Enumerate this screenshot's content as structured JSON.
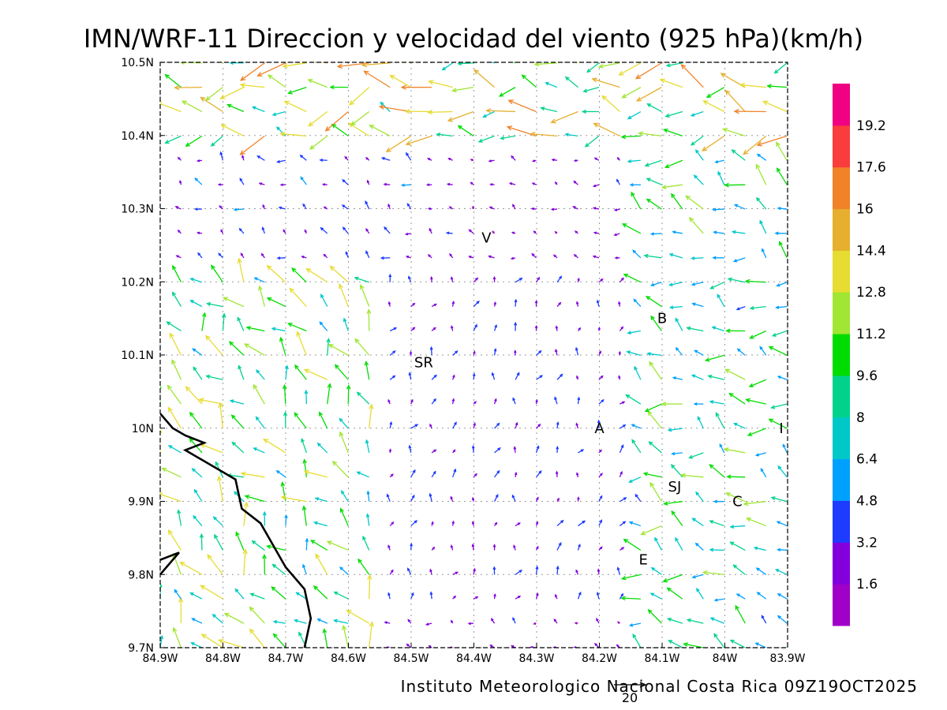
{
  "title": "IMN/WRF-11 Direccion y velocidad del viento (925 hPa)(km/h)",
  "credit": "Instituto Meteorologico Nacional Costa Rica 09Z19OCT2025",
  "reference_vector": {
    "label": "20",
    "speed": 20
  },
  "map": {
    "lon_range": [
      -84.9,
      -83.9
    ],
    "lat_range": [
      9.7,
      10.5
    ],
    "grid": true,
    "x_ticks": [
      {
        "lon": -84.9,
        "label": "84.9W"
      },
      {
        "lon": -84.8,
        "label": "84.8W"
      },
      {
        "lon": -84.7,
        "label": "84.7W"
      },
      {
        "lon": -84.6,
        "label": "84.6W"
      },
      {
        "lon": -84.5,
        "label": "84.5W"
      },
      {
        "lon": -84.4,
        "label": "84.4W"
      },
      {
        "lon": -84.3,
        "label": "84.3W"
      },
      {
        "lon": -84.2,
        "label": "84.2W"
      },
      {
        "lon": -84.1,
        "label": "84.1W"
      },
      {
        "lon": -84.0,
        "label": "84W"
      },
      {
        "lon": -83.9,
        "label": "83.9W"
      }
    ],
    "y_ticks": [
      {
        "lat": 10.5,
        "label": "10.5N"
      },
      {
        "lat": 10.4,
        "label": "10.4N"
      },
      {
        "lat": 10.3,
        "label": "10.3N"
      },
      {
        "lat": 10.2,
        "label": "10.2N"
      },
      {
        "lat": 10.1,
        "label": "10.1N"
      },
      {
        "lat": 10.0,
        "label": "10N"
      },
      {
        "lat": 9.9,
        "label": "9.9N"
      },
      {
        "lat": 9.8,
        "label": "9.8N"
      },
      {
        "lat": 9.7,
        "label": "9.7N"
      }
    ],
    "places": [
      {
        "label": "V",
        "lon": -84.38,
        "lat": 10.26
      },
      {
        "label": "B",
        "lon": -84.1,
        "lat": 10.15
      },
      {
        "label": "SR",
        "lon": -84.48,
        "lat": 10.09
      },
      {
        "label": "A",
        "lon": -84.2,
        "lat": 10.0
      },
      {
        "label": "I",
        "lon": -83.91,
        "lat": 10.0
      },
      {
        "label": "SJ",
        "lon": -84.08,
        "lat": 9.92
      },
      {
        "label": "C",
        "lon": -83.98,
        "lat": 9.9
      },
      {
        "label": "E",
        "lon": -84.13,
        "lat": 9.82
      }
    ],
    "coastline": [
      [
        -84.9,
        10.02
      ],
      [
        -84.88,
        10.0
      ],
      [
        -84.86,
        9.99
      ],
      [
        -84.83,
        9.98
      ],
      [
        -84.86,
        9.97
      ],
      [
        -84.82,
        9.95
      ],
      [
        -84.78,
        9.93
      ],
      [
        -84.77,
        9.89
      ],
      [
        -84.74,
        9.87
      ],
      [
        -84.72,
        9.84
      ],
      [
        -84.7,
        9.81
      ],
      [
        -84.67,
        9.78
      ],
      [
        -84.66,
        9.74
      ],
      [
        -84.67,
        9.7
      ]
    ],
    "coastline_sw": [
      [
        -84.9,
        9.8
      ],
      [
        -84.87,
        9.83
      ],
      [
        -84.9,
        9.82
      ]
    ]
  },
  "colorbar": {
    "colors": [
      "#a000c8",
      "#8200dc",
      "#1e3cff",
      "#00a0ff",
      "#00c8c8",
      "#00d28c",
      "#00dc00",
      "#a0e632",
      "#e6dc32",
      "#e6af2d",
      "#f08228",
      "#fa3c3c",
      "#f00082"
    ],
    "labels": [
      "1.6",
      "3.2",
      "4.8",
      "6.4",
      "8",
      "9.6",
      "11.2",
      "12.8",
      "14.4",
      "16",
      "17.6",
      "19.2"
    ],
    "thresholds": [
      1.6,
      3.2,
      4.8,
      6.4,
      8,
      9.6,
      11.2,
      12.8,
      14.4,
      16,
      17.6,
      19.2
    ]
  },
  "wind_field": {
    "grid_lon_start": -84.9,
    "grid_lon_step": 0.0333,
    "grid_lat_start": 9.7,
    "grid_lat_step": 0.0333,
    "regimes": [
      {
        "name_region": "north-strip",
        "lon": [
          -84.9,
          -83.9
        ],
        "lat": [
          10.37,
          10.5
        ],
        "u": -12,
        "v": 0.5
      },
      {
        "name_region": "northwest-sector",
        "lon": [
          -84.9,
          -84.5
        ],
        "lat": [
          10.2,
          10.37
        ],
        "u": -3,
        "v": 2
      },
      {
        "name_region": "pacific-slope",
        "lon": [
          -84.9,
          -84.55
        ],
        "lat": [
          9.7,
          10.2
        ],
        "u": -6,
        "v": 8
      },
      {
        "name_region": "central-valley",
        "lon": [
          -84.55,
          -84.15
        ],
        "lat": [
          9.75,
          10.2
        ],
        "u": 1,
        "v": 3
      },
      {
        "name_region": "east-sector",
        "lon": [
          -84.15,
          -83.9
        ],
        "lat": [
          9.7,
          10.37
        ],
        "u": -8,
        "v": 3
      }
    ]
  }
}
